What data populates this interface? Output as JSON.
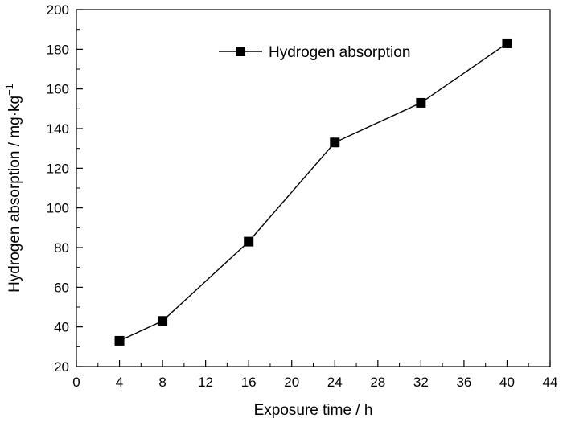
{
  "chart_data": {
    "type": "line",
    "title": "",
    "xlabel": "Exposure time / h",
    "ylabel": "Hydrogen absorption / mg·kg",
    "ylabel_superscript": "−1",
    "xlim": [
      0,
      44
    ],
    "ylim": [
      20,
      200
    ],
    "xticks": [
      0,
      4,
      8,
      12,
      16,
      20,
      24,
      28,
      32,
      36,
      40,
      44
    ],
    "yticks": [
      20,
      40,
      60,
      80,
      100,
      120,
      140,
      160,
      180,
      200
    ],
    "grid": false,
    "legend_position": "top-right",
    "series": [
      {
        "name": "Hydrogen absorption",
        "marker": "square",
        "color": "#000000",
        "x": [
          4,
          8,
          16,
          24,
          32,
          40
        ],
        "y": [
          33,
          43,
          83,
          133,
          153,
          183
        ]
      }
    ]
  }
}
